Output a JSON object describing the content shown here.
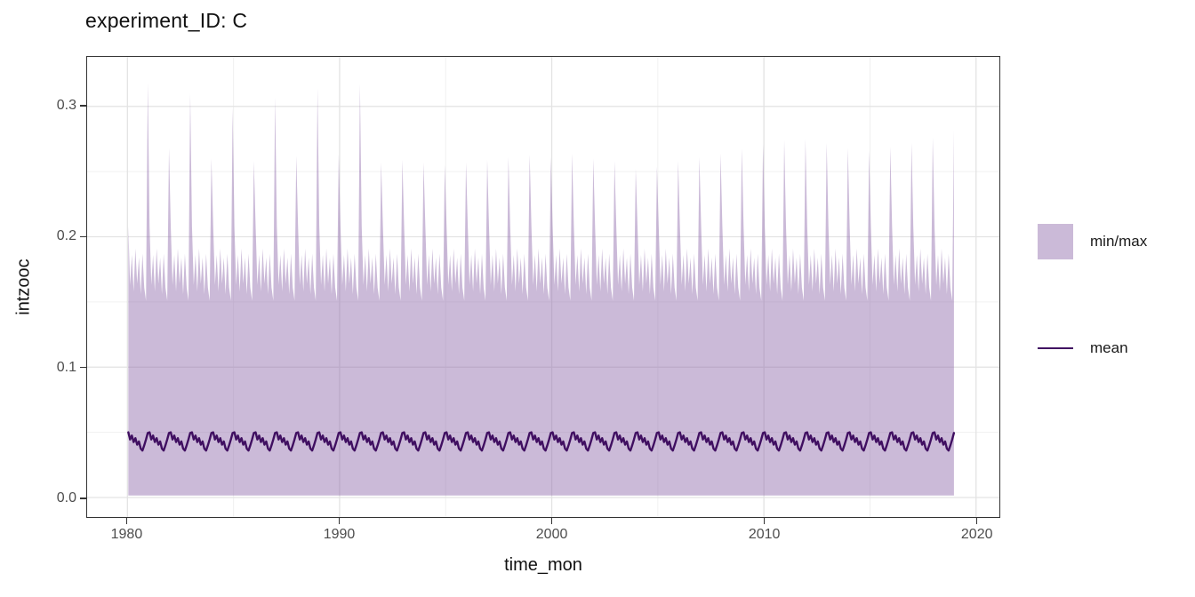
{
  "title": "experiment_ID: C",
  "legend": {
    "items": [
      {
        "label": "min/max",
        "key": "fill-swatch"
      },
      {
        "label": "mean",
        "key": "line-swatch"
      }
    ]
  },
  "colors": {
    "ribbon_fill_base": "#8b65a8",
    "ribbon_fill_opacity": 0.45,
    "ribbon_fill_composited": "#cbbad8",
    "mean_line": "#400f61",
    "grid_major": "#e3e3e3",
    "grid_minor": "#f0f0f0",
    "panel_border": "#333333",
    "tick_text": "#4d4d4d",
    "label_text": "#111111"
  },
  "chart_data": {
    "type": "area",
    "title": "experiment_ID: C",
    "xlabel": "time_mon",
    "ylabel": "intzooc",
    "xlim": [
      1978.1,
      2021.1
    ],
    "ylim": [
      -0.015,
      0.338
    ],
    "x_ticks": [
      1980,
      1990,
      2000,
      2010,
      2020
    ],
    "x_tick_labels": [
      "1980",
      "1990",
      "2000",
      "2010",
      "2020"
    ],
    "x_minor_ticks": [
      1985,
      1995,
      2005,
      2015
    ],
    "y_ticks": [
      0.0,
      0.1,
      0.2,
      0.3
    ],
    "y_tick_labels": [
      "0.0",
      "0.1",
      "0.2",
      "0.3"
    ],
    "y_minor_ticks": [
      0.05,
      0.15,
      0.25
    ],
    "grid": true,
    "legend_position": "right",
    "frequency": "monthly",
    "start_year": 1980,
    "end_year": 2018,
    "series": [
      {
        "name": "min/max",
        "kind": "ribbon",
        "fill": "#8b65a8",
        "fill_opacity": 0.45,
        "min_constant": 0.0015,
        "max_monthly_template_jan_to_nov": [
          0.208,
          0.163,
          0.186,
          0.158,
          0.191,
          0.164,
          0.184,
          0.156,
          0.187,
          0.161,
          0.151
        ],
        "max_december_peaks_1980_to_2018": [
          0.318,
          0.268,
          0.31,
          0.26,
          0.299,
          0.258,
          0.307,
          0.262,
          0.314,
          0.263,
          0.317,
          0.257,
          0.259,
          0.257,
          0.255,
          0.257,
          0.259,
          0.261,
          0.263,
          0.261,
          0.264,
          0.26,
          0.258,
          0.252,
          0.254,
          0.258,
          0.261,
          0.264,
          0.268,
          0.271,
          0.274,
          0.275,
          0.272,
          0.268,
          0.266,
          0.269,
          0.272,
          0.276,
          0.282
        ]
      },
      {
        "name": "mean",
        "kind": "line",
        "color": "#400f61",
        "width": 2.4,
        "monthly_template_jan_to_dec": [
          0.05,
          0.0445,
          0.0475,
          0.0425,
          0.0455,
          0.0405,
          0.043,
          0.0375,
          0.036,
          0.04,
          0.0445,
          0.0495
        ]
      }
    ]
  }
}
